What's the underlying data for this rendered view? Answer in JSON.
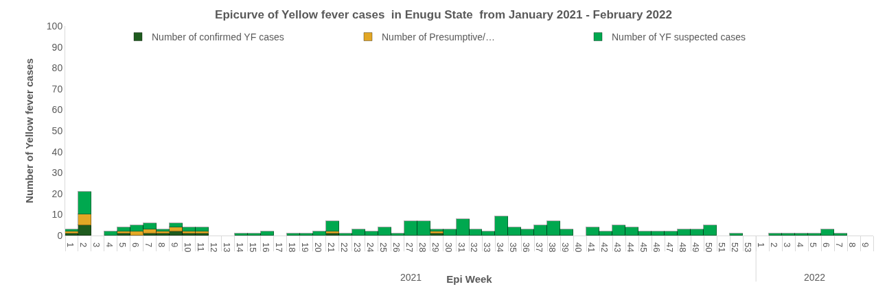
{
  "chart_data": {
    "type": "bar",
    "stacked": true,
    "title": "Epicurve of Yellow fever cases  in Enugu State  from January 2021 - February 2022",
    "xlabel": "Epi Week",
    "ylabel": "Number of Yellow fever cases",
    "categories": [
      "1",
      "2",
      "3",
      "4",
      "5",
      "6",
      "7",
      "8",
      "9",
      "10",
      "11",
      "12",
      "13",
      "14",
      "15",
      "16",
      "17",
      "18",
      "19",
      "20",
      "21",
      "22",
      "23",
      "24",
      "25",
      "26",
      "27",
      "28",
      "29",
      "30",
      "31",
      "32",
      "33",
      "34",
      "35",
      "36",
      "37",
      "38",
      "39",
      "40",
      "41",
      "42",
      "43",
      "44",
      "45",
      "46",
      "47",
      "48",
      "49",
      "50",
      "51",
      "52",
      "53",
      "1",
      "2",
      "3",
      "4",
      "5",
      "6",
      "7",
      "8",
      "9"
    ],
    "series": [
      {
        "name": "Number of confirmed YF cases",
        "color": "#1e5b1e",
        "values": [
          1,
          5,
          0,
          0,
          1,
          0,
          1,
          1,
          2,
          1,
          1,
          0,
          0,
          0,
          0,
          0,
          0,
          0,
          0,
          0,
          1,
          0,
          0,
          0,
          0,
          0,
          0,
          0,
          1,
          0,
          0,
          0,
          0,
          0,
          0,
          0,
          0,
          0,
          0,
          0,
          0,
          0,
          0,
          0,
          0,
          0,
          0,
          0,
          0,
          0,
          0,
          0,
          0,
          0,
          0,
          0,
          0,
          0,
          0,
          0,
          0,
          0
        ]
      },
      {
        "name": "Number of Presumptive/…",
        "color": "#e2a725",
        "values": [
          1,
          5,
          0,
          0,
          1,
          2,
          2,
          1,
          2,
          1,
          1,
          0,
          0,
          0,
          0,
          0,
          0,
          0,
          0,
          0,
          1,
          0,
          0,
          0,
          0,
          0,
          0,
          0,
          1,
          0,
          0,
          0,
          0,
          0,
          0,
          0,
          0,
          0,
          0,
          0,
          0,
          0,
          0,
          0,
          0,
          0,
          0,
          0,
          0,
          0,
          0,
          0,
          0,
          0,
          0,
          0,
          0,
          0,
          0,
          0,
          0,
          0
        ]
      },
      {
        "name": "Number of YF suspected cases",
        "color": "#00a84f",
        "values": [
          1,
          11,
          0,
          2,
          2,
          3,
          3,
          1,
          2,
          2,
          2,
          0,
          0,
          1,
          1,
          2,
          0,
          1,
          1,
          2,
          5,
          1,
          3,
          2,
          4,
          1,
          7,
          7,
          1,
          3,
          8,
          3,
          2,
          9,
          4,
          3,
          5,
          7,
          3,
          0,
          4,
          2,
          5,
          4,
          2,
          2,
          2,
          3,
          3,
          5,
          0,
          1,
          0,
          0,
          1,
          1,
          1,
          1,
          3,
          1,
          0,
          0
        ]
      }
    ],
    "annotations": [
      "2021",
      "2022"
    ],
    "ylim": [
      0,
      100
    ],
    "yticks": [
      0,
      10,
      20,
      30,
      40,
      50,
      60,
      70,
      80,
      90,
      100
    ],
    "legend": "top"
  }
}
